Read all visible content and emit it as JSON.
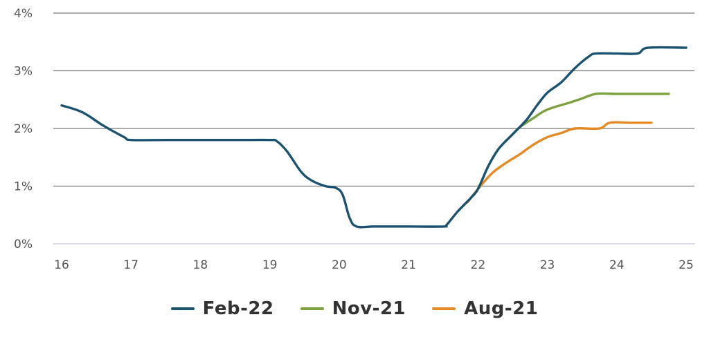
{
  "chart_data": {
    "type": "line",
    "title": "",
    "xlabel": "",
    "ylabel": "",
    "xlim": [
      16,
      25
    ],
    "ylim": [
      0,
      4
    ],
    "x_ticks": [
      "16",
      "17",
      "18",
      "19",
      "20",
      "21",
      "22",
      "23",
      "24",
      "25"
    ],
    "y_ticks": [
      "0%",
      "1%",
      "2%",
      "3%",
      "4%"
    ],
    "grid": "horizontal",
    "legend_position": "bottom",
    "series": [
      {
        "name": "Feb-22",
        "color": "#1a5270",
        "points": [
          [
            16.0,
            2.4
          ],
          [
            16.3,
            2.28
          ],
          [
            16.6,
            2.05
          ],
          [
            16.9,
            1.85
          ],
          [
            17.0,
            1.8
          ],
          [
            17.5,
            1.8
          ],
          [
            18.0,
            1.8
          ],
          [
            18.5,
            1.8
          ],
          [
            19.0,
            1.8
          ],
          [
            19.1,
            1.78
          ],
          [
            19.25,
            1.6
          ],
          [
            19.45,
            1.25
          ],
          [
            19.6,
            1.1
          ],
          [
            19.8,
            1.0
          ],
          [
            19.95,
            0.97
          ],
          [
            20.05,
            0.85
          ],
          [
            20.15,
            0.45
          ],
          [
            20.25,
            0.3
          ],
          [
            20.5,
            0.3
          ],
          [
            21.0,
            0.3
          ],
          [
            21.5,
            0.3
          ],
          [
            21.55,
            0.33
          ],
          [
            21.7,
            0.55
          ],
          [
            21.9,
            0.8
          ],
          [
            22.0,
            0.95
          ],
          [
            22.15,
            1.35
          ],
          [
            22.3,
            1.65
          ],
          [
            22.5,
            1.9
          ],
          [
            22.7,
            2.15
          ],
          [
            22.85,
            2.4
          ],
          [
            23.0,
            2.62
          ],
          [
            23.2,
            2.8
          ],
          [
            23.4,
            3.05
          ],
          [
            23.6,
            3.25
          ],
          [
            23.7,
            3.3
          ],
          [
            24.0,
            3.3
          ],
          [
            24.3,
            3.3
          ],
          [
            24.45,
            3.4
          ],
          [
            25.0,
            3.4
          ]
        ]
      },
      {
        "name": "Nov-21",
        "color": "#7ba23f",
        "points": [
          [
            21.9,
            0.8
          ],
          [
            22.0,
            0.95
          ],
          [
            22.15,
            1.35
          ],
          [
            22.3,
            1.65
          ],
          [
            22.5,
            1.9
          ],
          [
            22.6,
            2.02
          ],
          [
            22.8,
            2.18
          ],
          [
            22.95,
            2.3
          ],
          [
            23.1,
            2.37
          ],
          [
            23.3,
            2.44
          ],
          [
            23.5,
            2.52
          ],
          [
            23.7,
            2.6
          ],
          [
            24.0,
            2.6
          ],
          [
            24.4,
            2.6
          ],
          [
            24.75,
            2.6
          ]
        ]
      },
      {
        "name": "Aug-21",
        "color": "#e38a22",
        "points": [
          [
            21.85,
            0.72
          ],
          [
            22.0,
            0.95
          ],
          [
            22.2,
            1.22
          ],
          [
            22.4,
            1.4
          ],
          [
            22.6,
            1.55
          ],
          [
            22.8,
            1.72
          ],
          [
            23.0,
            1.85
          ],
          [
            23.2,
            1.92
          ],
          [
            23.4,
            2.0
          ],
          [
            23.75,
            2.0
          ],
          [
            23.9,
            2.1
          ],
          [
            24.2,
            2.1
          ],
          [
            24.5,
            2.1
          ]
        ]
      }
    ]
  }
}
